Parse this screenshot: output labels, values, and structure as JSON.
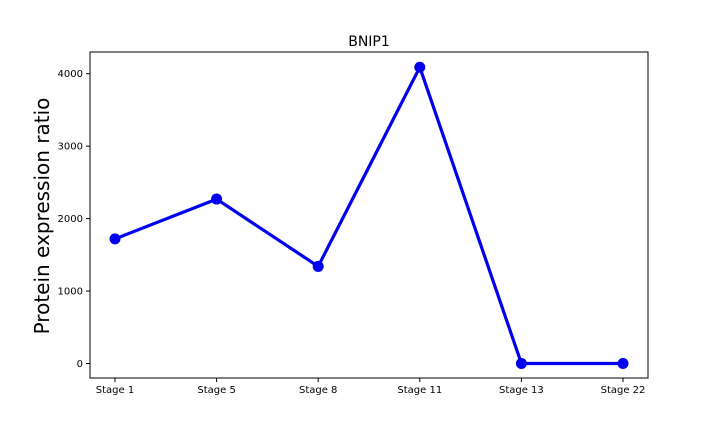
{
  "chart_data": {
    "type": "line",
    "title": "BNIP1",
    "xlabel": "",
    "ylabel": "Protein expression ratio",
    "categories": [
      "Stage 1",
      "Stage 5",
      "Stage 8",
      "Stage 11",
      "Stage 13",
      "Stage 22"
    ],
    "series": [
      {
        "values": [
          1720,
          2270,
          1340,
          4090,
          0,
          0
        ],
        "color": "#0000ee",
        "marker": "circle"
      }
    ],
    "ylim": [
      -200,
      4300
    ],
    "yticks": [
      0,
      1000,
      2000,
      3000,
      4000
    ],
    "grid": false,
    "legend": "none"
  }
}
